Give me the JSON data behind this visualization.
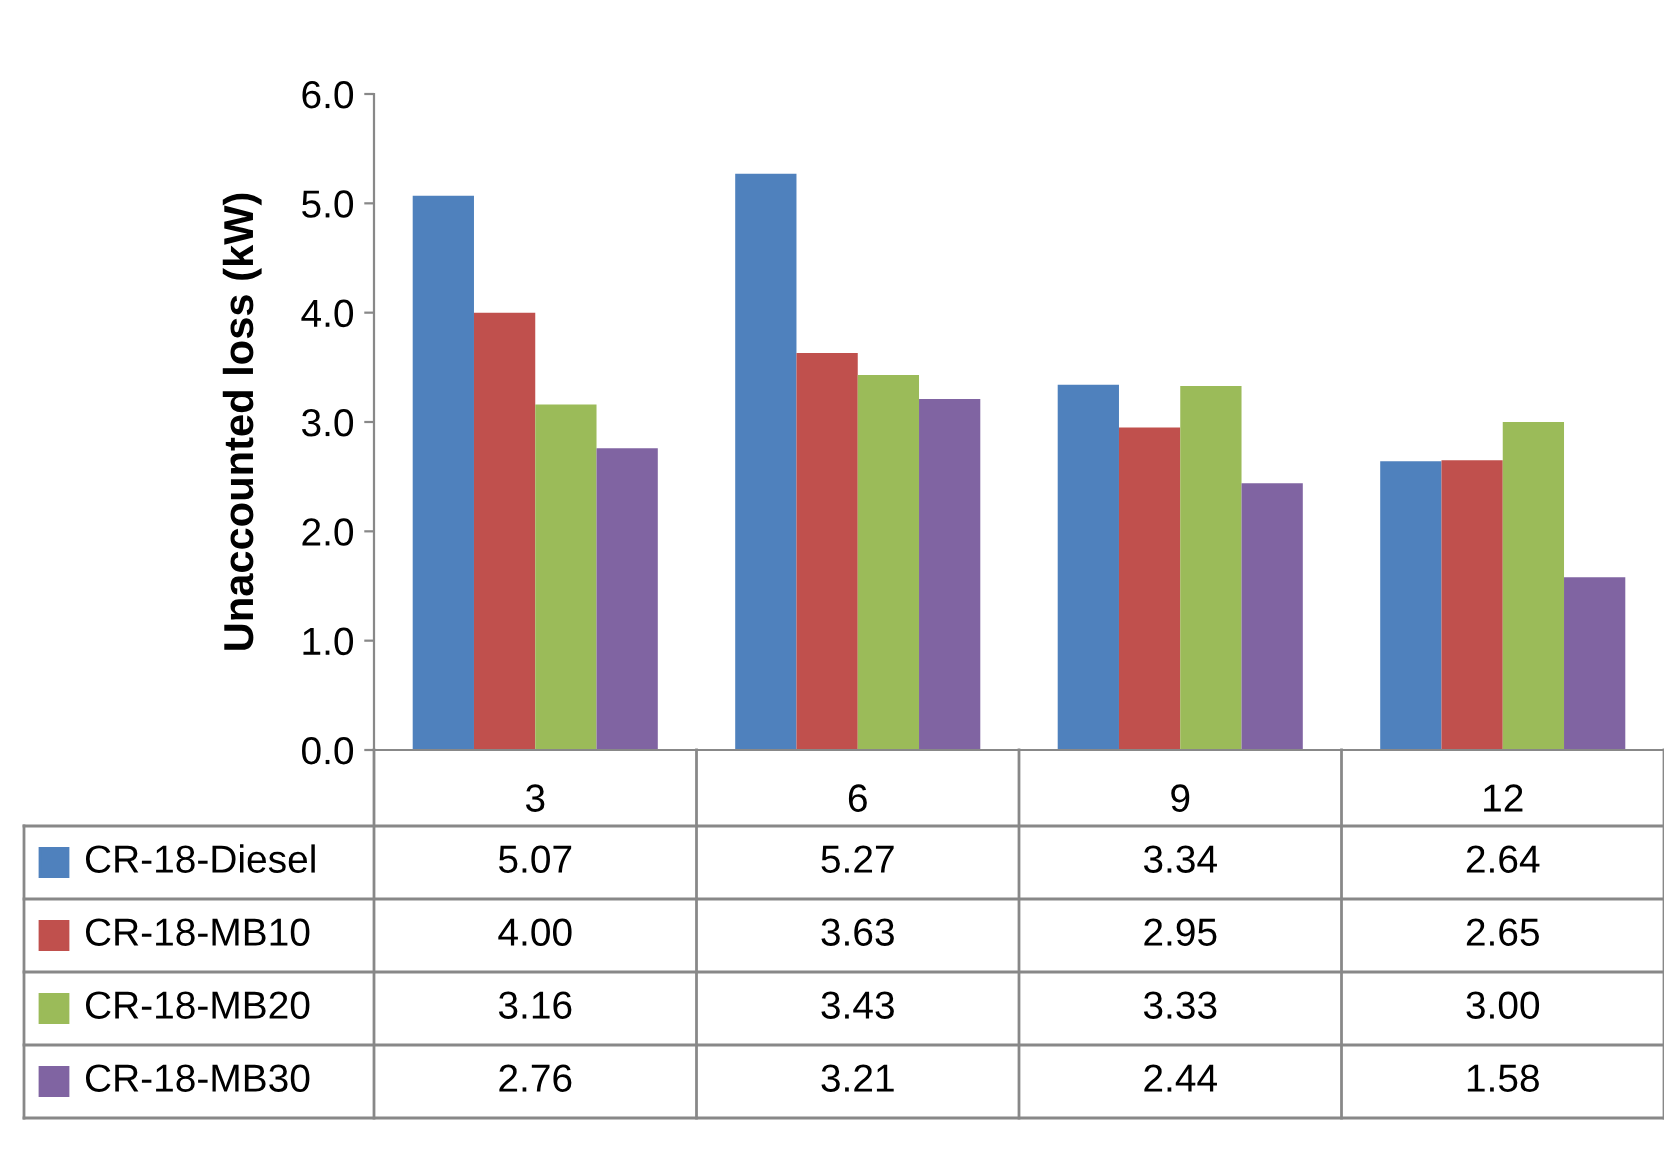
{
  "chart_data": {
    "type": "bar",
    "ylabel": "Unaccounted loss (kW)",
    "categories": [
      "3",
      "6",
      "9",
      "12"
    ],
    "series": [
      {
        "name": "CR-18-Diesel",
        "color": "#4f81bd",
        "values": [
          5.07,
          5.27,
          3.34,
          2.64
        ],
        "value_labels": [
          "5.07",
          "5.27",
          "3.34",
          "2.64"
        ]
      },
      {
        "name": "CR-18-MB10",
        "color": "#c0504d",
        "values": [
          4.0,
          3.63,
          2.95,
          2.65
        ],
        "value_labels": [
          "4.00",
          "3.63",
          "2.95",
          "2.65"
        ]
      },
      {
        "name": "CR-18-MB20",
        "color": "#9bbb59",
        "values": [
          3.16,
          3.43,
          3.33,
          3.0
        ],
        "value_labels": [
          "3.16",
          "3.43",
          "3.33",
          "3.00"
        ]
      },
      {
        "name": "CR-18-MB30",
        "color": "#8064a2",
        "values": [
          2.76,
          3.21,
          2.44,
          1.58
        ],
        "value_labels": [
          "2.76",
          "3.21",
          "2.44",
          "1.58"
        ]
      }
    ],
    "ylim": [
      0,
      6
    ],
    "yticks": [
      {
        "value": 0,
        "label": "0.0"
      },
      {
        "value": 1,
        "label": "1.0"
      },
      {
        "value": 2,
        "label": "2.0"
      },
      {
        "value": 3,
        "label": "3.0"
      },
      {
        "value": 4,
        "label": "4.0"
      },
      {
        "value": 5,
        "label": "5.0"
      },
      {
        "value": 6,
        "label": "6.0"
      }
    ],
    "grid": false,
    "legend": "bottom"
  }
}
